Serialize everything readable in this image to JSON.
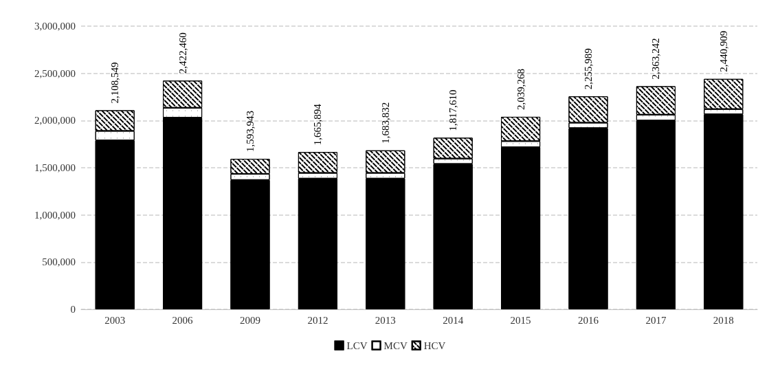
{
  "chart_data": {
    "type": "bar",
    "stacked": true,
    "categories": [
      "2003",
      "2006",
      "2009",
      "2012",
      "2013",
      "2014",
      "2015",
      "2016",
      "2017",
      "2018"
    ],
    "series": [
      {
        "name": "LCV",
        "color": "#000000",
        "values": [
          1790000,
          2030000,
          1370000,
          1385000,
          1385000,
          1540000,
          1718000,
          1920000,
          2000000,
          2066000
        ]
      },
      {
        "name": "MCV",
        "color": "#ffffff",
        "values": [
          100000,
          105000,
          65000,
          60000,
          60000,
          57000,
          64000,
          57000,
          62000,
          55000
        ]
      },
      {
        "name": "HCV",
        "color": "#ffffff",
        "values": [
          218549,
          287460,
          158943,
          220894,
          238832,
          220610,
          257268,
          278989,
          301242,
          319909
        ]
      }
    ],
    "totals": [
      "2,108,549",
      "2,422,460",
      "1,593,943",
      "1,665,894",
      "1,683,832",
      "1,817,610",
      "2,039,268",
      "2,255,989",
      "2,363,242",
      "2,440,909"
    ],
    "ylim": [
      0,
      3000000
    ],
    "yticks": [
      0,
      {
        "value": 500000,
        "label": "500,000"
      },
      {
        "value": 1000000,
        "label": "1,000,000"
      },
      {
        "value": 1500000,
        "label": "1,500,000"
      },
      {
        "value": 2000000,
        "label": "2,000,000"
      },
      {
        "value": 2500000,
        "label": "2,500,000"
      },
      {
        "value": 3000000,
        "label": "3,000,000"
      }
    ],
    "grid": "y",
    "legend": "bottom"
  }
}
